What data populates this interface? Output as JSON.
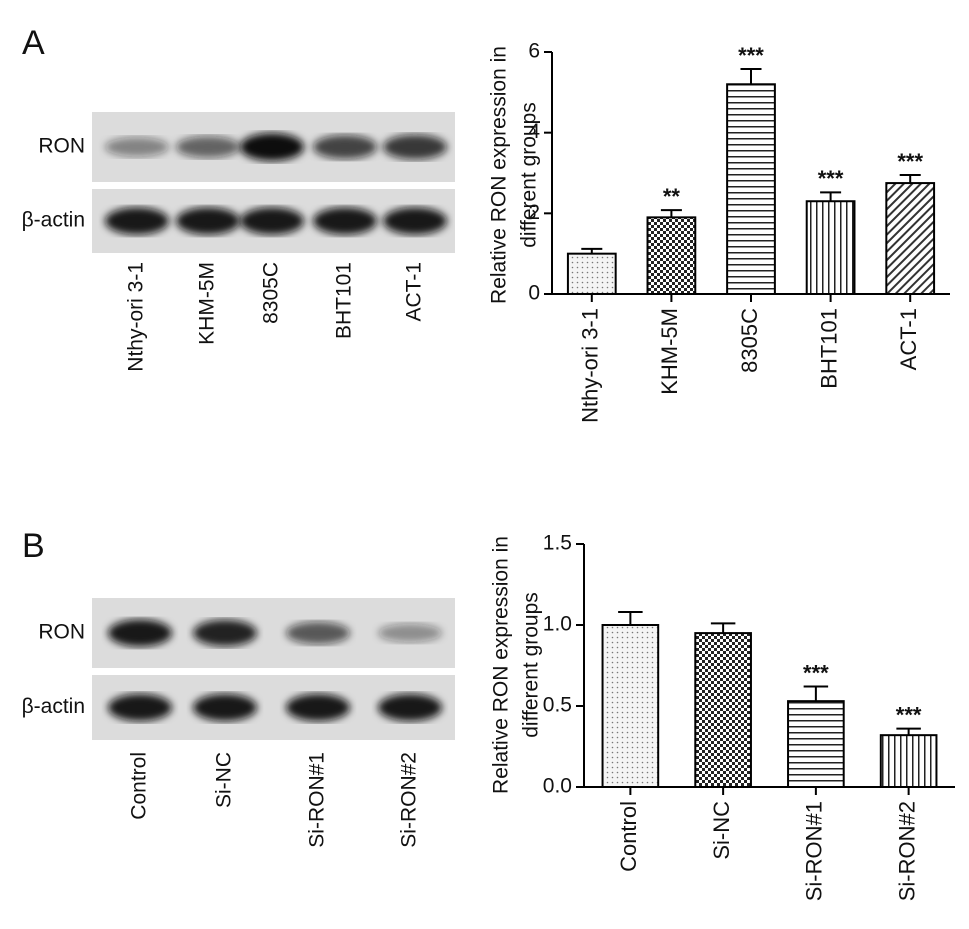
{
  "panels": [
    "A",
    "B"
  ],
  "blots": [
    {
      "rows": [
        "RON",
        "β-actin"
      ],
      "lanes": [
        "Nthy-ori 3-1",
        "KHM-5M",
        "8305C",
        "BHT101",
        "ACT-1"
      ]
    },
    {
      "rows": [
        "RON",
        "β-actin"
      ],
      "lanes": [
        "Control",
        "Si-NC",
        "Si-RON#1",
        "Si-RON#2"
      ]
    }
  ],
  "chart_data": [
    {
      "type": "bar",
      "ylabel": [
        "Relative RON expression in",
        "different groups"
      ],
      "categories": [
        "Nthy-ori 3-1",
        "KHM-5M",
        "8305C",
        "BHT101",
        "ACT-1"
      ],
      "values": [
        1.0,
        1.9,
        5.2,
        2.3,
        2.75
      ],
      "errors": [
        0.12,
        0.18,
        0.38,
        0.22,
        0.2
      ],
      "annotations": [
        null,
        "**",
        "***",
        "***",
        "***"
      ],
      "ylim": [
        0,
        6
      ],
      "yticks": [
        0,
        2,
        4,
        6
      ]
    },
    {
      "type": "bar",
      "ylabel": [
        "Relative RON expression in",
        "different groups"
      ],
      "categories": [
        "Control",
        "Si-NC",
        "Si-RON#1",
        "Si-RON#2"
      ],
      "values": [
        1.0,
        0.95,
        0.53,
        0.32
      ],
      "errors": [
        0.08,
        0.06,
        0.09,
        0.04
      ],
      "annotations": [
        null,
        null,
        "***",
        "***"
      ],
      "ylim": [
        0,
        1.5
      ],
      "yticks": [
        {
          "value": 0,
          "label": "0.0"
        },
        0.5,
        {
          "value": 1,
          "label": "1.0"
        },
        1.5
      ]
    }
  ]
}
